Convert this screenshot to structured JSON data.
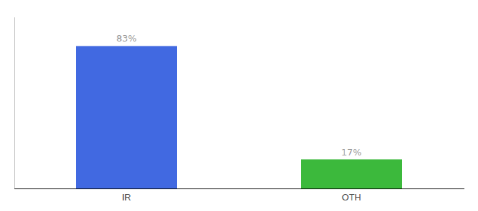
{
  "chart_data": {
    "type": "bar",
    "categories": [
      "IR",
      "OTH"
    ],
    "values": [
      83,
      17
    ],
    "value_labels": [
      "83%",
      "17%"
    ],
    "data_labels": true,
    "colors": [
      "#4169E1",
      "#3CB93C"
    ],
    "ylim": [
      0,
      100
    ],
    "tick_labels": "x",
    "grid": false
  }
}
